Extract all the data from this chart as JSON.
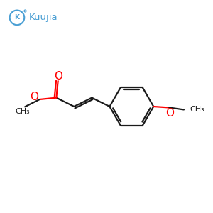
{
  "bg_color": "#ffffff",
  "bond_color": "#1a1a1a",
  "oxygen_color": "#ff0000",
  "logo_color": "#4a9fd4",
  "logo_text": "Kuujia",
  "bond_width": 1.6,
  "figsize": [
    3.0,
    3.0
  ],
  "dpi": 100,
  "xlim": [
    0,
    10
  ],
  "ylim": [
    0,
    10
  ]
}
